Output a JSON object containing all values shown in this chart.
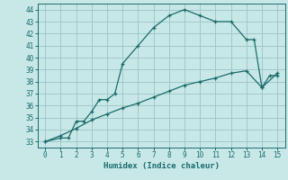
{
  "xlabel": "Humidex (Indice chaleur)",
  "xlim": [
    -0.5,
    15.5
  ],
  "ylim": [
    32.5,
    44.5
  ],
  "yticks": [
    33,
    34,
    35,
    36,
    37,
    38,
    39,
    40,
    41,
    42,
    43,
    44
  ],
  "xticks": [
    0,
    1,
    2,
    3,
    4,
    5,
    6,
    7,
    8,
    9,
    10,
    11,
    12,
    13,
    14,
    15
  ],
  "bg_color": "#c8e8e8",
  "grid_color": "#a0c8c8",
  "line_color": "#1a6b6b",
  "line1_x": [
    0,
    1,
    1.5,
    2,
    2.5,
    3,
    3.5,
    4,
    4.5,
    5,
    6,
    7,
    8,
    9,
    10,
    11,
    12,
    13,
    13.5,
    14,
    14.5,
    15
  ],
  "line1_y": [
    33,
    33.3,
    33.3,
    34.7,
    34.7,
    35.5,
    36.5,
    36.5,
    37,
    39.5,
    41,
    42.5,
    43.5,
    44,
    43.5,
    43,
    43,
    41.5,
    41.5,
    37.5,
    38.5,
    38.5
  ],
  "line2_x": [
    0,
    1,
    2,
    3,
    4,
    5,
    6,
    7,
    8,
    9,
    10,
    11,
    12,
    13,
    14,
    15
  ],
  "line2_y": [
    33,
    33.5,
    34.1,
    34.8,
    35.3,
    35.8,
    36.2,
    36.7,
    37.2,
    37.7,
    38.0,
    38.3,
    38.7,
    38.9,
    37.5,
    38.7
  ]
}
